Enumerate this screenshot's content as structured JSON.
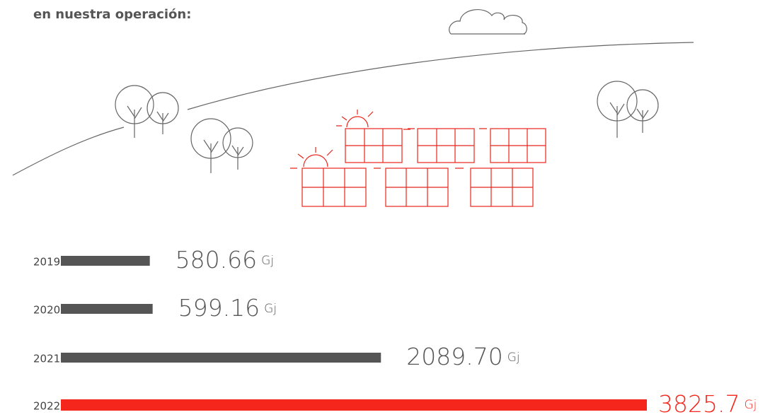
{
  "chart_data": {
    "type": "bar",
    "orientation": "horizontal",
    "subtitle": "en nuestra operación:",
    "categories": [
      "2019",
      "2020",
      "2021",
      "2022"
    ],
    "values": [
      580.66,
      599.16,
      2089.7,
      3825.7
    ],
    "value_labels": [
      "580.66",
      "599.16",
      "2089.70",
      "3825.7"
    ],
    "unit": "Gj",
    "colors": [
      "#555555",
      "#555555",
      "#555555",
      "#f5261b"
    ]
  }
}
